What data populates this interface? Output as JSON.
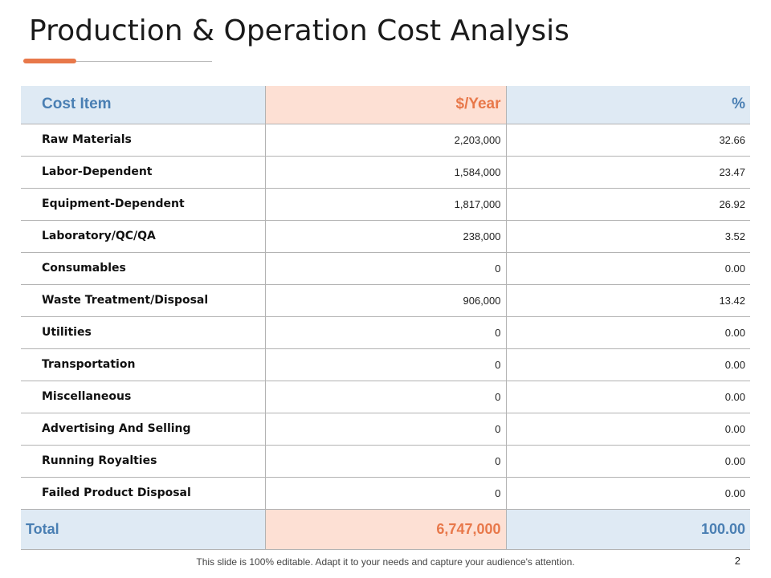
{
  "slide": {
    "title": "Production & Operation Cost Analysis",
    "footer_note": "This slide is 100% editable. Adapt it to your needs and capture your audience's attention.",
    "page_number": "2"
  },
  "colors": {
    "accent": "#e8784a",
    "header_blue": "#4a7fb3",
    "header_blue_bg": "#dfeaf4",
    "header_peach_bg": "#fde0d4"
  },
  "table": {
    "headers": [
      "Cost Item",
      "$/Year",
      "%"
    ],
    "rows": [
      [
        "Raw Materials",
        "2,203,000",
        "32.66"
      ],
      [
        "Labor-Dependent",
        "1,584,000",
        "23.47"
      ],
      [
        "Equipment-Dependent",
        "1,817,000",
        "26.92"
      ],
      [
        "Laboratory/QC/QA",
        "238,000",
        "3.52"
      ],
      [
        "Consumables",
        "0",
        "0.00"
      ],
      [
        "Waste Treatment/Disposal",
        "906,000",
        "13.42"
      ],
      [
        "Utilities",
        "0",
        "0.00"
      ],
      [
        "Transportation",
        "0",
        "0.00"
      ],
      [
        "Miscellaneous",
        "0",
        "0.00"
      ],
      [
        "Advertising And Selling",
        "0",
        "0.00"
      ],
      [
        "Running Royalties",
        "0",
        "0.00"
      ],
      [
        "Failed Product Disposal",
        "0",
        "0.00"
      ]
    ],
    "total": [
      "Total",
      "6,747,000",
      "100.00"
    ]
  }
}
